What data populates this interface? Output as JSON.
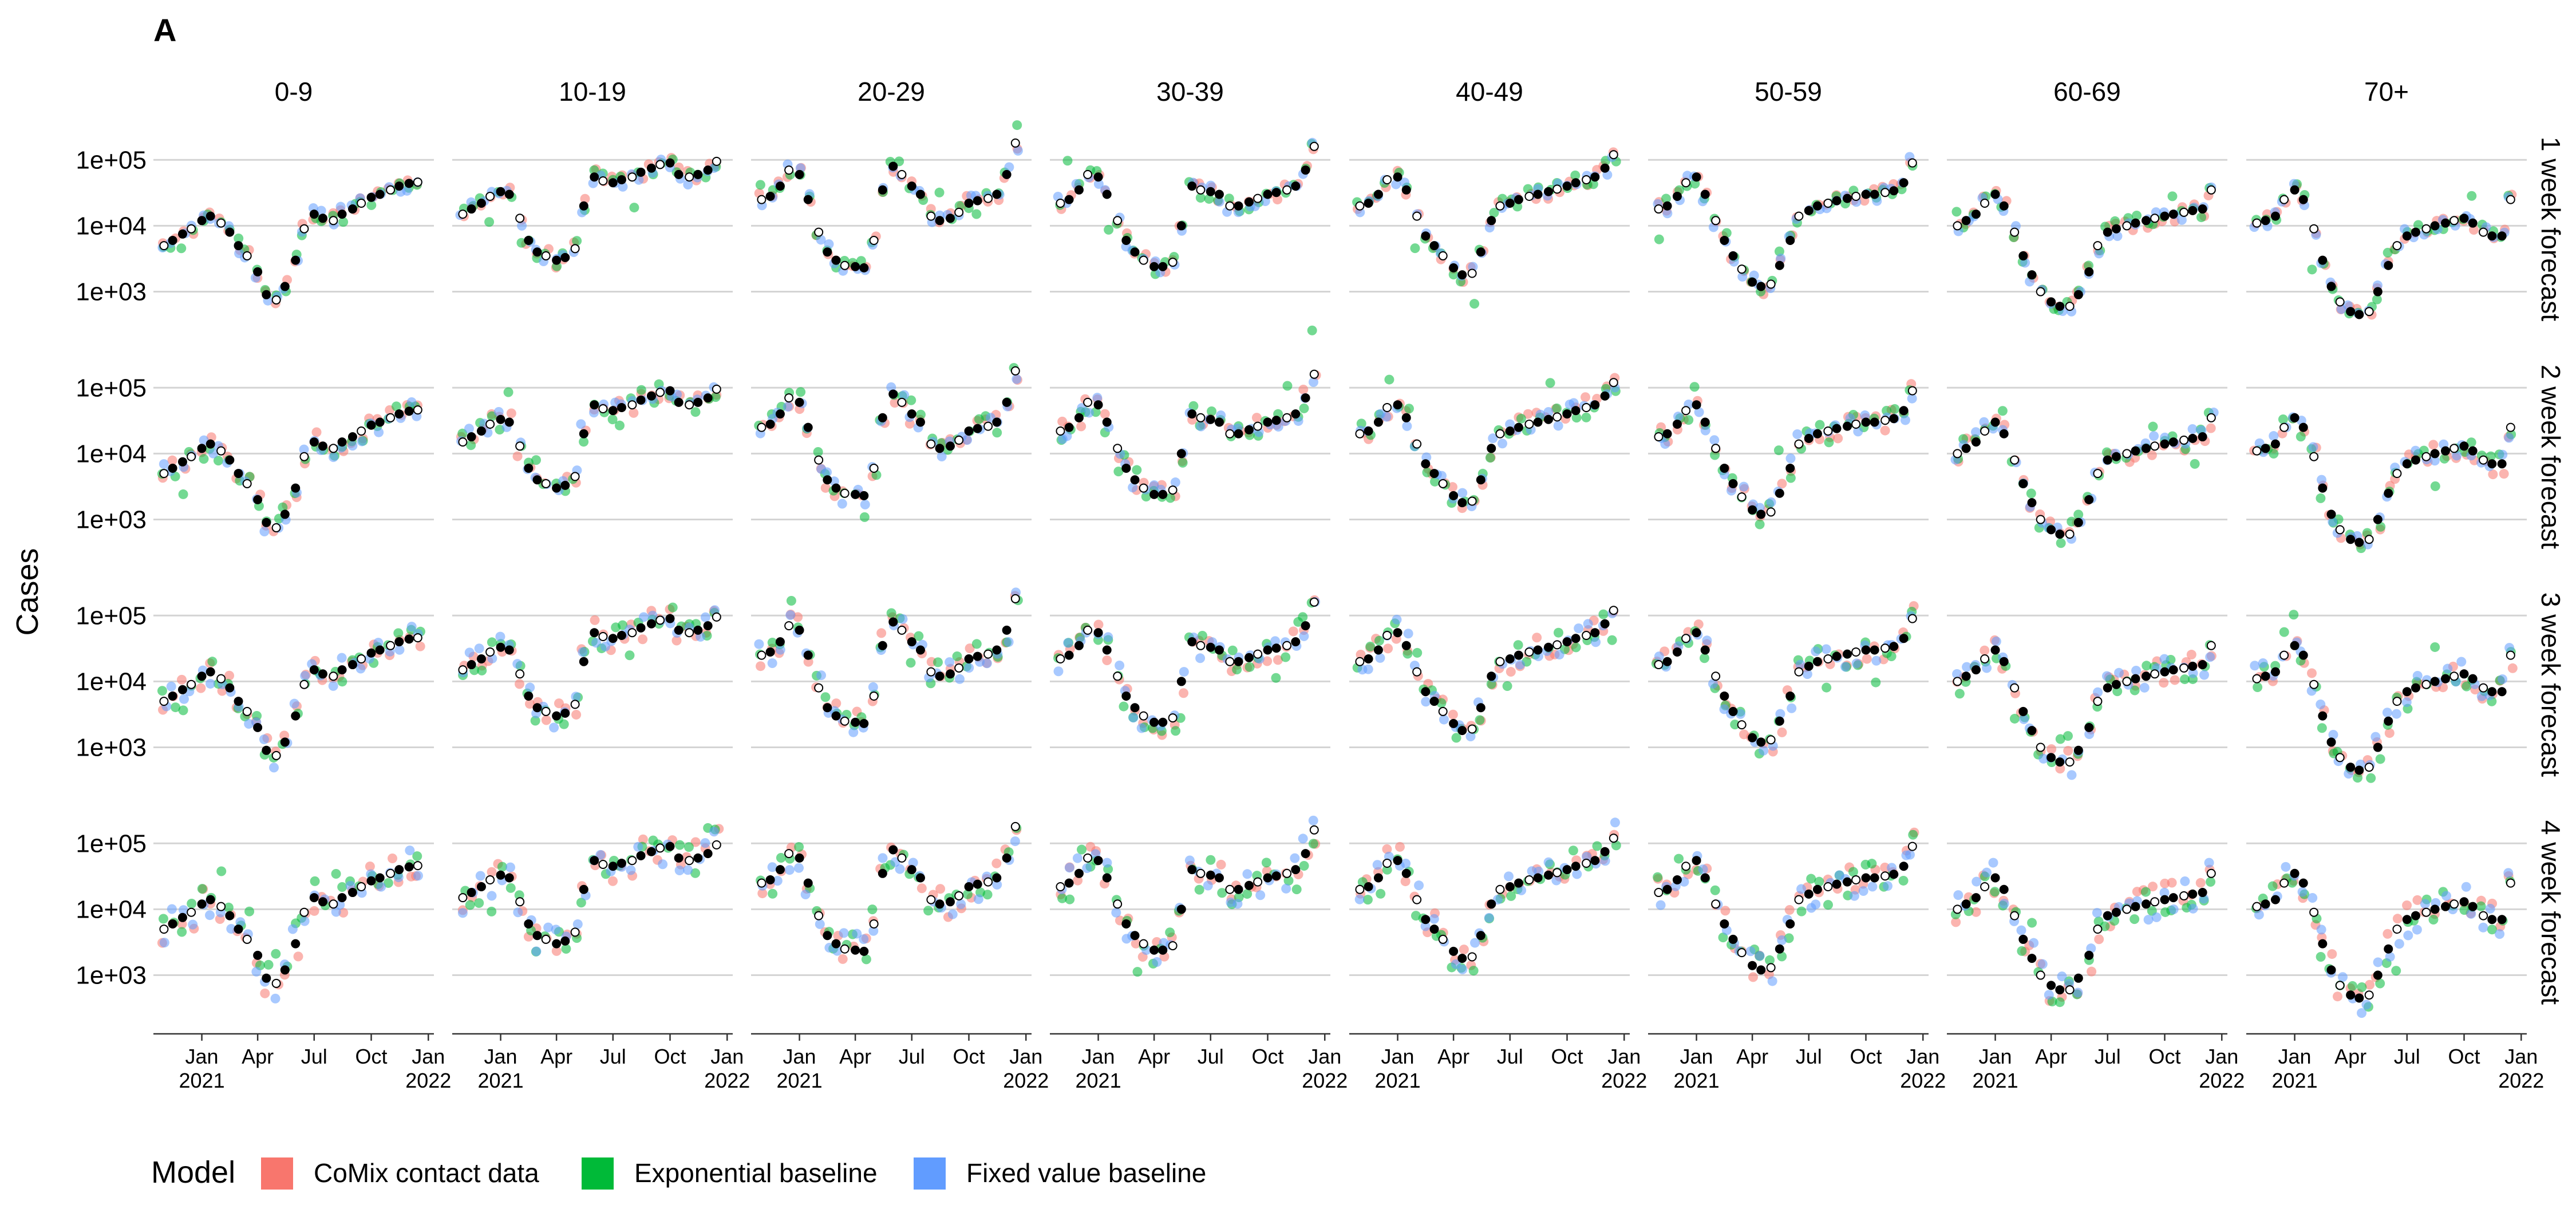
{
  "chart_data": {
    "type": "scatter",
    "panel_label": "A",
    "ylabel": "Cases",
    "yscale": "log10",
    "ylim": [
      200,
      400000
    ],
    "y_ticks": [
      1000,
      10000,
      100000
    ],
    "y_tick_labels": [
      "1e+03",
      "1e+04",
      "1e+05"
    ],
    "xlim": [
      "2020-10-15",
      "2022-01-10"
    ],
    "x_ticks": [
      {
        "date": "2021-01-01",
        "line1": "Jan",
        "line2": "2021"
      },
      {
        "date": "2021-04-01",
        "line1": "Apr",
        "line2": ""
      },
      {
        "date": "2021-07-01",
        "line1": "Jul",
        "line2": ""
      },
      {
        "date": "2021-10-01",
        "line1": "Oct",
        "line2": ""
      },
      {
        "date": "2022-01-01",
        "line1": "Jan",
        "line2": "2022"
      }
    ],
    "facet_columns": [
      "0-9",
      "10-19",
      "20-29",
      "30-39",
      "40-49",
      "50-59",
      "60-69",
      "70+"
    ],
    "facet_rows": [
      "1 week forecast",
      "2 week forecast",
      "3 week forecast",
      "4 week forecast"
    ],
    "grid": {
      "major_y": true,
      "x": false
    },
    "legend": {
      "title": "Model",
      "position": "bottom",
      "entries": [
        {
          "name": "CoMix contact data",
          "color": "#F8766D"
        },
        {
          "name": "Exponential baseline",
          "color": "#00BA38"
        },
        {
          "name": "Fixed value baseline",
          "color": "#619CFF"
        }
      ]
    },
    "observed_color": "#000000",
    "weekly_dates": [
      "2020-11-01",
      "2020-11-15",
      "2020-12-01",
      "2020-12-15",
      "2021-01-01",
      "2021-01-15",
      "2021-02-01",
      "2021-02-15",
      "2021-03-01",
      "2021-03-15",
      "2021-04-01",
      "2021-04-15",
      "2021-05-01",
      "2021-05-15",
      "2021-06-01",
      "2021-06-15",
      "2021-07-01",
      "2021-07-15",
      "2021-08-01",
      "2021-08-15",
      "2021-09-01",
      "2021-09-15",
      "2021-10-01",
      "2021-10-15",
      "2021-11-01",
      "2021-11-15",
      "2021-12-01",
      "2021-12-15"
    ],
    "observed": [
      {
        "age": "0-9",
        "values": [
          5000,
          6000,
          7500,
          9000,
          12000,
          14000,
          11000,
          8000,
          5000,
          3500,
          2000,
          900,
          750,
          1200,
          3000,
          9000,
          15000,
          13000,
          12000,
          15000,
          18000,
          22000,
          27000,
          30000,
          35000,
          40000,
          44000,
          46000
        ]
      },
      {
        "age": "10-19",
        "values": [
          15000,
          18000,
          22000,
          28000,
          33000,
          30000,
          13000,
          6000,
          4000,
          3500,
          3000,
          3300,
          4500,
          20000,
          55000,
          48000,
          45000,
          50000,
          55000,
          65000,
          75000,
          85000,
          90000,
          60000,
          55000,
          60000,
          70000,
          95000
        ]
      },
      {
        "age": "20-29",
        "values": [
          25000,
          28000,
          40000,
          70000,
          60000,
          25000,
          8000,
          4000,
          3000,
          2500,
          2400,
          2300,
          6000,
          35000,
          80000,
          60000,
          40000,
          30000,
          14000,
          12000,
          13000,
          16000,
          22000,
          24000,
          26000,
          30000,
          60000,
          180000
        ]
      },
      {
        "age": "30-39",
        "values": [
          22000,
          25000,
          35000,
          60000,
          55000,
          30000,
          12000,
          6000,
          4000,
          3000,
          2400,
          2400,
          2800,
          10000,
          40000,
          35000,
          33000,
          30000,
          20000,
          20000,
          23000,
          26000,
          30000,
          32000,
          35000,
          40000,
          70000,
          160000
        ]
      },
      {
        "age": "40-49",
        "values": [
          20000,
          22000,
          30000,
          50000,
          55000,
          35000,
          14000,
          7000,
          5000,
          3500,
          2300,
          1800,
          1900,
          4000,
          12000,
          20000,
          22000,
          25000,
          28000,
          30000,
          33000,
          36000,
          40000,
          45000,
          50000,
          55000,
          75000,
          120000
        ]
      },
      {
        "age": "50-59",
        "values": [
          18000,
          20000,
          28000,
          45000,
          55000,
          30000,
          12000,
          6000,
          3500,
          2200,
          1400,
          1200,
          1300,
          2500,
          6000,
          14000,
          17000,
          20000,
          22000,
          24000,
          26000,
          28000,
          30000,
          30000,
          32000,
          34000,
          45000,
          90000
        ]
      },
      {
        "age": "60-69",
        "values": [
          10000,
          12000,
          15000,
          22000,
          30000,
          20000,
          8000,
          3500,
          1800,
          1000,
          700,
          600,
          600,
          900,
          2000,
          5000,
          8000,
          9000,
          10000,
          11000,
          12000,
          13000,
          14000,
          15000,
          16000,
          17000,
          18000,
          35000
        ]
      },
      {
        "age": "70+",
        "values": [
          11000,
          12000,
          14000,
          25000,
          35000,
          25000,
          9000,
          3000,
          1200,
          700,
          500,
          450,
          500,
          1000,
          2500,
          5000,
          7000,
          8000,
          9000,
          10000,
          11000,
          12000,
          13000,
          11000,
          8000,
          7000,
          7000,
          25000
        ]
      }
    ]
  }
}
